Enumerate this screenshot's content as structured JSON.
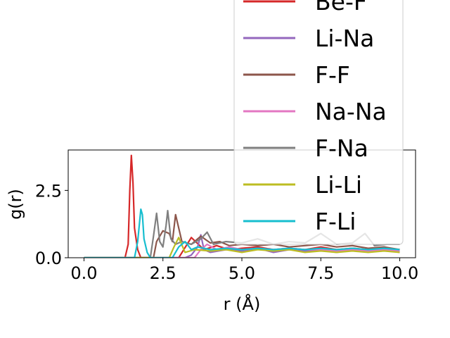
{
  "chart_data": {
    "type": "line",
    "xlabel": "r (Å)",
    "ylabel": "g(r)",
    "xlim": [
      -0.5,
      10.5
    ],
    "ylim": [
      0.0,
      4.0
    ],
    "xticks": [
      "0.0",
      "2.5",
      "5.0",
      "7.5",
      "10.0"
    ],
    "xtick_values": [
      0.0,
      2.5,
      5.0,
      7.5,
      10.0
    ],
    "yticks": [
      "0.0",
      "2.5"
    ],
    "ytick_values": [
      0.0,
      2.5
    ],
    "legend_position": "upper right, overflowing above the axes",
    "series": [
      {
        "name": "Be-F",
        "color": "#d62728",
        "x": [
          0.0,
          1.3,
          1.4,
          1.45,
          1.5,
          1.55,
          1.6,
          1.7,
          1.8,
          1.9,
          2.0,
          2.5,
          3.0,
          3.4,
          3.8,
          4.2,
          4.6,
          5.0,
          5.5,
          6.0,
          6.5,
          7.0,
          7.5,
          8.0,
          8.5,
          9.0,
          9.5,
          10.0
        ],
        "y": [
          0.0,
          0.0,
          0.5,
          2.5,
          3.8,
          2.8,
          1.1,
          0.3,
          0.0,
          0.0,
          0.0,
          0.0,
          0.0,
          0.75,
          0.3,
          0.45,
          0.3,
          0.35,
          0.4,
          0.3,
          0.35,
          0.3,
          0.4,
          0.3,
          0.35,
          0.3,
          0.35,
          0.3
        ]
      },
      {
        "name": "Li-Na",
        "color": "#9467bd",
        "x": [
          0.0,
          3.2,
          3.4,
          3.6,
          3.7,
          3.8,
          4.0,
          4.5,
          5.0,
          5.5,
          6.0,
          6.5,
          7.0,
          7.5,
          8.0,
          8.5,
          9.0,
          9.5,
          10.0
        ],
        "y": [
          0.0,
          0.0,
          0.1,
          0.4,
          0.85,
          0.3,
          0.2,
          0.3,
          0.25,
          0.35,
          0.2,
          0.3,
          0.25,
          0.3,
          0.2,
          0.3,
          0.25,
          0.3,
          0.2
        ]
      },
      {
        "name": "F-F",
        "color": "#8c564b",
        "x": [
          0.0,
          2.2,
          2.3,
          2.5,
          2.7,
          2.8,
          2.9,
          3.1,
          3.4,
          3.7,
          4.0,
          4.3,
          4.6,
          5.0,
          5.5,
          6.0,
          6.5,
          7.0,
          7.5,
          8.0,
          8.5,
          9.0,
          9.5,
          10.0
        ],
        "y": [
          0.0,
          0.0,
          0.6,
          1.0,
          0.9,
          0.6,
          1.6,
          0.6,
          0.5,
          0.8,
          0.55,
          0.6,
          0.45,
          0.5,
          0.45,
          0.5,
          0.4,
          0.45,
          0.5,
          0.4,
          0.45,
          0.35,
          0.4,
          0.3
        ]
      },
      {
        "name": "Na-Na",
        "color": "#e377c2",
        "x": [
          0.0,
          3.5,
          3.7,
          3.9,
          4.2,
          4.6,
          5.0,
          5.5,
          6.0,
          6.5,
          7.0,
          7.5,
          8.0,
          8.5,
          9.0,
          9.5,
          10.0
        ],
        "y": [
          0.0,
          0.0,
          0.3,
          0.5,
          0.3,
          0.4,
          0.3,
          0.35,
          0.3,
          0.35,
          0.3,
          0.3,
          0.25,
          0.3,
          0.25,
          0.3,
          0.25
        ]
      },
      {
        "name": "F-Na",
        "color": "#7f7f7f",
        "x": [
          0.0,
          2.1,
          2.2,
          2.3,
          2.4,
          2.5,
          2.6,
          2.65,
          2.75,
          2.9,
          3.1,
          3.4,
          3.7,
          3.9,
          4.1,
          4.5,
          5.0,
          5.5,
          6.0,
          6.5,
          7.0,
          7.5,
          8.0,
          8.5,
          8.9,
          9.2,
          9.6,
          10.0
        ],
        "y": [
          0.0,
          0.0,
          0.8,
          1.65,
          0.6,
          0.4,
          1.2,
          1.75,
          0.7,
          0.5,
          0.6,
          0.5,
          0.7,
          0.95,
          0.5,
          0.6,
          0.55,
          0.7,
          0.5,
          0.6,
          0.55,
          0.9,
          0.5,
          0.55,
          0.9,
          0.45,
          0.5,
          0.5
        ]
      },
      {
        "name": "Li-Li",
        "color": "#bcbd22",
        "x": [
          0.0,
          2.7,
          2.85,
          3.0,
          3.2,
          3.5,
          4.0,
          4.5,
          5.0,
          5.5,
          6.0,
          6.5,
          7.0,
          7.5,
          8.0,
          8.5,
          9.0,
          9.5,
          10.0
        ],
        "y": [
          0.0,
          0.0,
          0.4,
          0.75,
          0.2,
          0.3,
          0.25,
          0.3,
          0.2,
          0.3,
          0.25,
          0.3,
          0.2,
          0.25,
          0.2,
          0.25,
          0.2,
          0.25,
          0.2
        ]
      },
      {
        "name": "F-Li",
        "color": "#17becf",
        "x": [
          0.0,
          1.6,
          1.7,
          1.8,
          1.85,
          1.9,
          2.0,
          2.1,
          2.3,
          2.8,
          3.0,
          3.2,
          3.4,
          3.6,
          4.0,
          4.5,
          5.0,
          5.5,
          6.0,
          6.5,
          7.0,
          7.5,
          8.0,
          8.5,
          9.0,
          9.5,
          10.0
        ],
        "y": [
          0.0,
          0.0,
          0.6,
          1.8,
          1.6,
          0.7,
          0.2,
          0.0,
          0.0,
          0.0,
          0.4,
          0.6,
          0.3,
          0.4,
          0.3,
          0.35,
          0.3,
          0.35,
          0.3,
          0.35,
          0.3,
          0.35,
          0.3,
          0.35,
          0.3,
          0.35,
          0.3
        ]
      }
    ],
    "legend": {
      "entries": [
        "Be-F",
        "Li-Na",
        "F-F",
        "Na-Na",
        "F-Na",
        "Li-Li",
        "F-Li"
      ]
    }
  }
}
